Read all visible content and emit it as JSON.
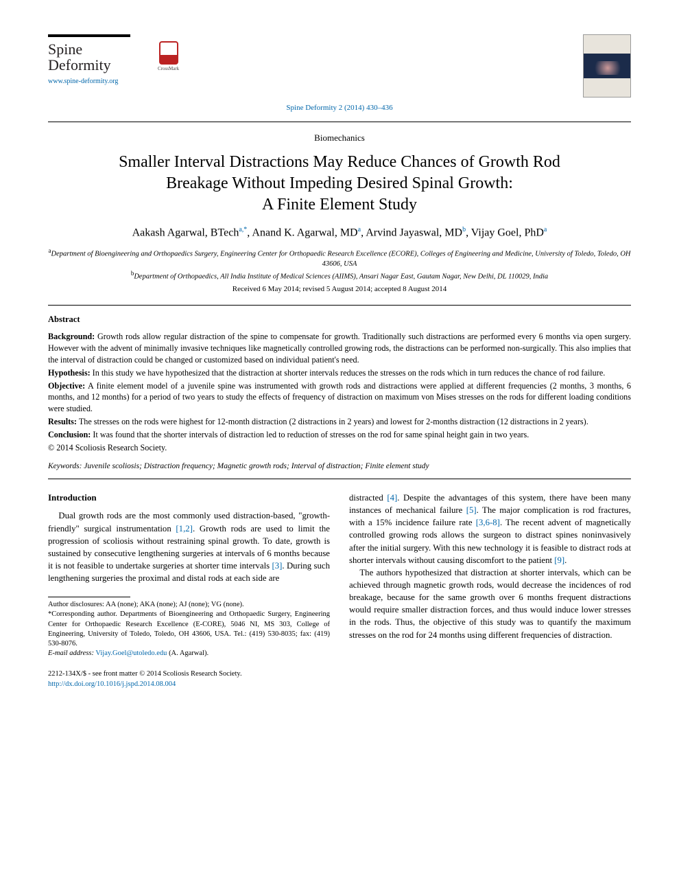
{
  "journal": {
    "brand_line1": "Spine",
    "brand_line2": "Deformity",
    "url": "www.spine-deformity.org",
    "citation": "Spine Deformity 2 (2014) 430–436",
    "crossmark_label": "CrossMark"
  },
  "article": {
    "section": "Biomechanics",
    "title_line1": "Smaller Interval Distractions May Reduce Chances of Growth Rod",
    "title_line2": "Breakage Without Impeding Desired Spinal Growth:",
    "title_line3": "A Finite Element Study",
    "authors_html": "Aakash Agarwal, BTech|a,*|, Anand K. Agarwal, MD|a|, Arvind Jayaswal, MD|b|, Vijay Goel, PhD|a|",
    "authors": [
      {
        "name": "Aakash Agarwal, BTech",
        "aff": "a,*"
      },
      {
        "name": "Anand K. Agarwal, MD",
        "aff": "a"
      },
      {
        "name": "Arvind Jayaswal, MD",
        "aff": "b"
      },
      {
        "name": "Vijay Goel, PhD",
        "aff": "a"
      }
    ],
    "affiliations": {
      "a": "Department of Bioengineering and Orthopaedics Surgery, Engineering Center for Orthopaedic Research Excellence (ECORE), Colleges of Engineering and Medicine, University of Toledo, Toledo, OH 43606, USA",
      "b": "Department of Orthopaedics, All India Institute of Medical Sciences (AIIMS), Ansari Nagar East, Gautam Nagar, New Delhi, DL 110029, India"
    },
    "dates": "Received 6 May 2014; revised 5 August 2014; accepted 8 August 2014"
  },
  "abstract": {
    "heading": "Abstract",
    "background_label": "Background:",
    "background": "Growth rods allow regular distraction of the spine to compensate for growth. Traditionally such distractions are performed every 6 months via open surgery. However with the advent of minimally invasive techniques like magnetically controlled growing rods, the distractions can be performed non-surgically. This also implies that the interval of distraction could be changed or customized based on individual patient's need.",
    "hypothesis_label": "Hypothesis:",
    "hypothesis": "In this study we have hypothesized that the distraction at shorter intervals reduces the stresses on the rods which in turn reduces the chance of rod failure.",
    "objective_label": "Objective:",
    "objective": "A finite element model of a juvenile spine was instrumented with growth rods and distractions were applied at different frequencies (2 months, 3 months, 6 months, and 12 months) for a period of two years to study the effects of frequency of distraction on maximum von Mises stresses on the rods for different loading conditions were studied.",
    "results_label": "Results:",
    "results": "The stresses on the rods were highest for 12-month distraction (2 distractions in 2 years) and lowest for 2-months distraction (12 distractions in 2 years).",
    "conclusion_label": "Conclusion:",
    "conclusion": "It was found that the shorter intervals of distraction led to reduction of stresses on the rod for same spinal height gain in two years.",
    "copyright": "© 2014 Scoliosis Research Society.",
    "keywords_label": "Keywords:",
    "keywords": "Juvenile scoliosis; Distraction frequency; Magnetic growth rods; Interval of distraction; Finite element study"
  },
  "body": {
    "intro_heading": "Introduction",
    "col1_p1a": "Dual growth rods are the most commonly used distraction-based, \"growth-friendly\" surgical instrumentation ",
    "ref_12": "[1,2]",
    "col1_p1b": ". Growth rods are used to limit the progression of scoliosis without restraining spinal growth. To date, growth is sustained by consecutive lengthening surgeries at intervals of 6 months because it is not feasible to undertake surgeries at shorter time intervals ",
    "ref_3": "[3]",
    "col1_p1c": ". During such lengthening surgeries the proximal and distal rods at each side are",
    "col2_p1a": "distracted ",
    "ref_4": "[4]",
    "col2_p1b": ". Despite the advantages of this system, there have been many instances of mechanical failure ",
    "ref_5": "[5]",
    "col2_p1c": ". The major complication is rod fractures, with a 15% incidence failure rate ",
    "ref_368": "[3,6-8]",
    "col2_p1d": ". The recent advent of magnetically controlled growing rods allows the surgeon to distract spines noninvasively after the initial surgery. With this new technology it is feasible to distract rods at shorter intervals without causing discomfort to the patient ",
    "ref_9": "[9]",
    "col2_p1e": ".",
    "col2_p2": "The authors hypothesized that distraction at shorter intervals, which can be achieved through magnetic growth rods, would decrease the incidences of rod breakage, because for the same growth over 6 months frequent distractions would require smaller distraction forces, and thus would induce lower stresses in the rods. Thus, the objective of this study was to quantify the maximum stresses on the rod for 24 months using different frequencies of distraction."
  },
  "footnotes": {
    "disclosures": "Author disclosures: AA (none); AKA (none); AJ (none); VG (none).",
    "corresponding": "*Corresponding author. Departments of Bioengineering and Orthopaedic Surgery, Engineering Center for Orthopaedic Research Excellence (E-CORE), 5046 NI, MS 303, College of Engineering, University of Toledo, Toledo, OH 43606, USA. Tel.: (419) 530-8035; fax: (419) 530-8076.",
    "email_label": "E-mail address:",
    "email": "Vijay.Goel@utoledo.edu",
    "email_suffix": " (A. Agarwal)."
  },
  "footer": {
    "issn_line": "2212-134X/$ - see front matter © 2014 Scoliosis Research Society.",
    "doi": "http://dx.doi.org/10.1016/j.jspd.2014.08.004"
  },
  "colors": {
    "link": "#0066aa",
    "text": "#000000",
    "background": "#ffffff"
  }
}
